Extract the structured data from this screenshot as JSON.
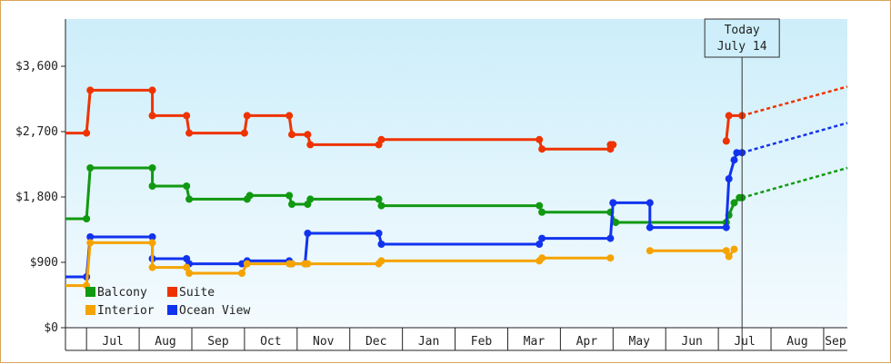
{
  "chart_data": {
    "type": "line",
    "step": true,
    "y_axis": {
      "ticks": [
        0,
        900,
        1800,
        2700,
        3600
      ],
      "tick_labels": [
        "$0",
        "$900",
        "$1,800",
        "$2,700",
        "$3,600"
      ],
      "ylim": [
        0,
        4250
      ]
    },
    "x_axis": {
      "tick_labels": [
        "Jul",
        "Aug",
        "Sep",
        "Oct",
        "Nov",
        "Dec",
        "Jan",
        "Feb",
        "Mar",
        "Apr",
        "May",
        "Jun",
        "Jul",
        "Aug",
        "Sep"
      ],
      "xlim": [
        -0.4,
        14.45
      ]
    },
    "today": {
      "line1": "Today",
      "line2": "July 14",
      "x": 12.45
    },
    "legend": {
      "placement": "bottom-left",
      "items": [
        {
          "label": "Balcony",
          "color": "#119911"
        },
        {
          "label": "Suite",
          "color": "#ee3300"
        },
        {
          "label": "Interior",
          "color": "#f5a300"
        },
        {
          "label": "Ocean View",
          "color": "#1133ee"
        }
      ]
    },
    "series": [
      {
        "key": "balcony",
        "color": "#119911",
        "points": [
          [
            -0.4,
            1500
          ],
          [
            0,
            1500
          ],
          [
            0.07,
            2200
          ],
          [
            1.25,
            2200
          ],
          [
            1.25,
            1950
          ],
          [
            1.9,
            1950
          ],
          [
            1.95,
            1770
          ],
          [
            3.05,
            1770
          ],
          [
            3.1,
            1820
          ],
          [
            3.85,
            1820
          ],
          [
            3.9,
            1700
          ],
          [
            4.2,
            1700
          ],
          [
            4.25,
            1770
          ],
          [
            5.55,
            1770
          ],
          [
            5.6,
            1680
          ],
          [
            8.6,
            1680
          ],
          [
            8.65,
            1590
          ],
          [
            9.95,
            1590
          ],
          [
            10.05,
            1450
          ],
          [
            12.15,
            1450
          ],
          [
            12.2,
            1550
          ],
          [
            12.3,
            1720
          ],
          [
            12.4,
            1790
          ],
          [
            12.45,
            1790
          ]
        ],
        "projection": [
          [
            12.45,
            1790
          ],
          [
            14.45,
            2200
          ]
        ]
      },
      {
        "key": "suite",
        "color": "#ee3300",
        "points": [
          [
            -0.4,
            2680
          ],
          [
            0,
            2680
          ],
          [
            0.07,
            3270
          ],
          [
            1.25,
            3270
          ],
          [
            1.25,
            2920
          ],
          [
            1.9,
            2920
          ],
          [
            1.95,
            2680
          ],
          [
            3.0,
            2680
          ],
          [
            3.05,
            2920
          ],
          [
            3.85,
            2920
          ],
          [
            3.9,
            2660
          ],
          [
            4.2,
            2660
          ],
          [
            4.25,
            2520
          ],
          [
            5.55,
            2520
          ],
          [
            5.6,
            2590
          ],
          [
            8.6,
            2590
          ],
          [
            8.65,
            2460
          ],
          [
            9.95,
            2460
          ],
          [
            9.95,
            2520
          ],
          [
            10.0,
            2520
          ]
        ],
        "points2": [
          [
            12.15,
            2570
          ],
          [
            12.2,
            2920
          ],
          [
            12.45,
            2920
          ]
        ],
        "projection": [
          [
            12.45,
            2920
          ],
          [
            14.45,
            3320
          ]
        ]
      },
      {
        "key": "ocean",
        "color": "#1133ee",
        "points": [
          [
            -0.4,
            700
          ],
          [
            0,
            700
          ],
          [
            0.07,
            1250
          ],
          [
            1.25,
            1250
          ],
          [
            1.25,
            950
          ],
          [
            1.9,
            950
          ],
          [
            1.95,
            880
          ],
          [
            2.95,
            880
          ],
          [
            3.05,
            920
          ],
          [
            3.85,
            920
          ],
          [
            3.9,
            880
          ],
          [
            4.15,
            880
          ],
          [
            4.2,
            1300
          ],
          [
            5.55,
            1300
          ],
          [
            5.6,
            1150
          ],
          [
            8.6,
            1150
          ],
          [
            8.65,
            1230
          ],
          [
            9.95,
            1230
          ],
          [
            10.0,
            1720
          ],
          [
            10.0,
            1720
          ],
          [
            10.7,
            1720
          ],
          [
            10.7,
            1380
          ],
          [
            12.15,
            1380
          ],
          [
            12.2,
            2050
          ],
          [
            12.3,
            2310
          ],
          [
            12.35,
            2410
          ],
          [
            12.45,
            2410
          ]
        ],
        "projection": [
          [
            12.45,
            2410
          ],
          [
            14.45,
            2820
          ]
        ]
      },
      {
        "key": "interior",
        "color": "#f5a300",
        "points": [
          [
            -0.4,
            580
          ],
          [
            0,
            580
          ],
          [
            0.07,
            1170
          ],
          [
            1.25,
            1170
          ],
          [
            1.25,
            830
          ],
          [
            1.9,
            830
          ],
          [
            1.95,
            750
          ],
          [
            2.95,
            750
          ],
          [
            3.05,
            880
          ],
          [
            3.85,
            880
          ],
          [
            3.9,
            880
          ],
          [
            4.15,
            880
          ],
          [
            4.2,
            880
          ],
          [
            5.55,
            880
          ],
          [
            5.6,
            920
          ],
          [
            8.6,
            920
          ],
          [
            8.65,
            960
          ],
          [
            9.95,
            960
          ]
        ],
        "points2": [
          [
            10.7,
            1060
          ],
          [
            12.15,
            1060
          ],
          [
            12.2,
            980
          ],
          [
            12.3,
            1080
          ]
        ]
      }
    ]
  }
}
